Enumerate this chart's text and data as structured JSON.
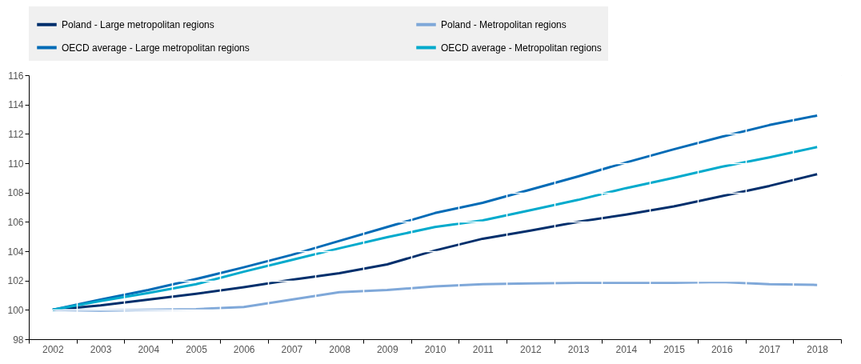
{
  "chart_data": {
    "type": "line",
    "categories": [
      "2002",
      "2003",
      "2004",
      "2005",
      "2006",
      "2007",
      "2008",
      "2009",
      "2010",
      "2011",
      "2012",
      "2013",
      "2014",
      "2015",
      "2016",
      "2017",
      "2018"
    ],
    "series": [
      {
        "name": "Poland - Large metropolitan regions",
        "color": "#002f6c",
        "values": [
          100,
          100.3,
          100.7,
          101.1,
          101.55,
          102.05,
          102.5,
          103.1,
          104.05,
          104.85,
          105.4,
          106.0,
          106.5,
          107.05,
          107.75,
          108.45,
          109.25
        ]
      },
      {
        "name": "Poland - Metropolitan regions",
        "color": "#7fa8d9",
        "values": [
          100,
          99.95,
          100.0,
          100.05,
          100.2,
          100.7,
          101.2,
          101.35,
          101.6,
          101.75,
          101.8,
          101.85,
          101.85,
          101.85,
          101.9,
          101.75,
          101.7
        ]
      },
      {
        "name": "OECD average - Large metropolitan regions",
        "color": "#006bb6",
        "values": [
          100,
          100.7,
          101.35,
          102.1,
          102.9,
          103.75,
          104.7,
          105.65,
          106.6,
          107.3,
          108.2,
          109.1,
          110.05,
          110.95,
          111.8,
          112.6,
          113.25
        ]
      },
      {
        "name": "OECD average - Metropolitan regions",
        "color": "#00aacc",
        "values": [
          100,
          100.6,
          101.15,
          101.75,
          102.6,
          103.4,
          104.2,
          104.95,
          105.65,
          106.1,
          106.8,
          107.5,
          108.3,
          109.0,
          109.75,
          110.4,
          111.1
        ]
      }
    ],
    "ylim": [
      98,
      116
    ],
    "yticks": [
      98,
      100,
      102,
      104,
      106,
      108,
      110,
      112,
      114,
      116
    ],
    "grid": true,
    "legend": "top",
    "marker": "none",
    "line_style": "solid"
  }
}
